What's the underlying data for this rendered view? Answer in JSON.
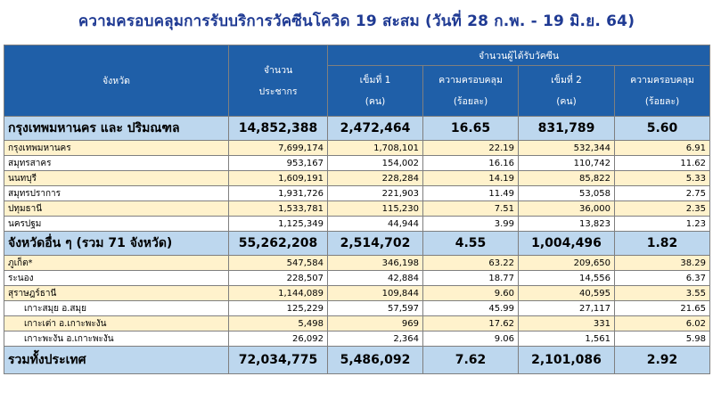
{
  "title": "ความครอบคลุมการรับบริการวัคซีนโควิด 19 สะสม (วันที่ 28 ก.พ. - 19 มิ.ย. 64)",
  "header": {
    "province": "จังหวัด",
    "population_line1": "จำนวน",
    "population_line2": "ประชากร",
    "vaccinated_group": "จำนวนผู้ได้รับวัคซีน",
    "dose1_line1": "เข็มที่ 1",
    "dose1_line2": "(คน)",
    "cov1_line1": "ความครอบคลุม",
    "cov1_line2": "(ร้อยละ)",
    "dose2_line1": "เข็มที่ 2",
    "dose2_line2": "(คน)",
    "cov2_line1": "ความครอบคลุม",
    "cov2_line2": "(ร้อยละ)"
  },
  "bangkok_summary": {
    "name": "กรุงเทพมหานคร และ ปริมณฑล",
    "population": "14,852,388",
    "dose1": "2,472,464",
    "cov1": "16.65",
    "dose2": "831,789",
    "cov2": "5.60"
  },
  "bangkok_rows": [
    {
      "name": "กรุงเทพมหานคร",
      "population": "7,699,174",
      "dose1": "1,708,101",
      "cov1": "22.19",
      "dose2": "532,344",
      "cov2": "6.91"
    },
    {
      "name": "สมุทรสาคร",
      "population": "953,167",
      "dose1": "154,002",
      "cov1": "16.16",
      "dose2": "110,742",
      "cov2": "11.62"
    },
    {
      "name": "นนทบุรี",
      "population": "1,609,191",
      "dose1": "228,284",
      "cov1": "14.19",
      "dose2": "85,822",
      "cov2": "5.33"
    },
    {
      "name": "สมุทรปราการ",
      "population": "1,931,726",
      "dose1": "221,903",
      "cov1": "11.49",
      "dose2": "53,058",
      "cov2": "2.75"
    },
    {
      "name": "ปทุมธานี",
      "population": "1,533,781",
      "dose1": "115,230",
      "cov1": "7.51",
      "dose2": "36,000",
      "cov2": "2.35"
    },
    {
      "name": "นครปฐม",
      "population": "1,125,349",
      "dose1": "44,944",
      "cov1": "3.99",
      "dose2": "13,823",
      "cov2": "1.23"
    }
  ],
  "other_summary": {
    "name": "จังหวัดอื่น ๆ (รวม 71 จังหวัด)",
    "population": "55,262,208",
    "dose1": "2,514,702",
    "cov1": "4.55",
    "dose2": "1,004,496",
    "cov2": "1.82"
  },
  "other_rows": [
    {
      "name": "ภูเก็ต*",
      "population": "547,584",
      "dose1": "346,198",
      "cov1": "63.22",
      "dose2": "209,650",
      "cov2": "38.29"
    },
    {
      "name": "ระนอง",
      "population": "228,507",
      "dose1": "42,884",
      "cov1": "18.77",
      "dose2": "14,556",
      "cov2": "6.37"
    },
    {
      "name": "สุราษฎร์ธานี",
      "population": "1,144,089",
      "dose1": "109,844",
      "cov1": "9.60",
      "dose2": "40,595",
      "cov2": "3.55"
    },
    {
      "name": "เกาะสมุย อ.สมุย",
      "population": "125,229",
      "dose1": "57,597",
      "cov1": "45.99",
      "dose2": "27,117",
      "cov2": "21.65"
    },
    {
      "name": "เกาะเต่า อ.เกาะพะงัน",
      "population": "5,498",
      "dose1": "969",
      "cov1": "17.62",
      "dose2": "331",
      "cov2": "6.02"
    },
    {
      "name": "เกาะพะงัน อ.เกาะพะงัน",
      "population": "26,092",
      "dose1": "2,364",
      "cov1": "9.06",
      "dose2": "1,561",
      "cov2": "5.98"
    }
  ],
  "total": {
    "name": "รวมทั้งประเทศ",
    "population": "72,034,775",
    "dose1": "5,486,092",
    "cov1": "7.62",
    "dose2": "2,101,086",
    "cov2": "2.92"
  }
}
